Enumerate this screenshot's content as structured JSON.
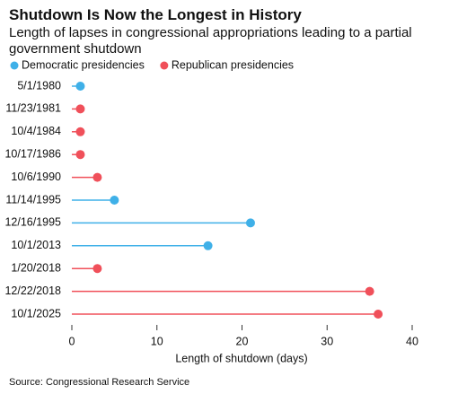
{
  "chart_data": {
    "type": "lollipop",
    "title": "Shutdown Is Now the Longest in History",
    "subtitle": "Length of lapses in congressional appropriations leading to a partial government shutdown",
    "categories": [
      "5/1/1980",
      "11/23/1981",
      "10/4/1984",
      "10/17/1986",
      "10/6/1990",
      "11/14/1995",
      "12/16/1995",
      "10/1/2013",
      "1/20/2018",
      "12/22/2018",
      "10/1/2025"
    ],
    "series": [
      {
        "name": "Democratic presidencies",
        "color": "#3fb0e8",
        "values": [
          1,
          null,
          null,
          null,
          null,
          5,
          21,
          16,
          null,
          null,
          null
        ]
      },
      {
        "name": "Republican presidencies",
        "color": "#f0505a",
        "values": [
          null,
          1,
          1,
          1,
          3,
          null,
          null,
          null,
          3,
          35,
          36
        ]
      }
    ],
    "x_label": "Length of shutdown (days)",
    "xlim": [
      0,
      40
    ],
    "xticks": [
      0,
      10,
      20,
      30,
      40
    ],
    "source": "Source: Congressional Research Service"
  }
}
